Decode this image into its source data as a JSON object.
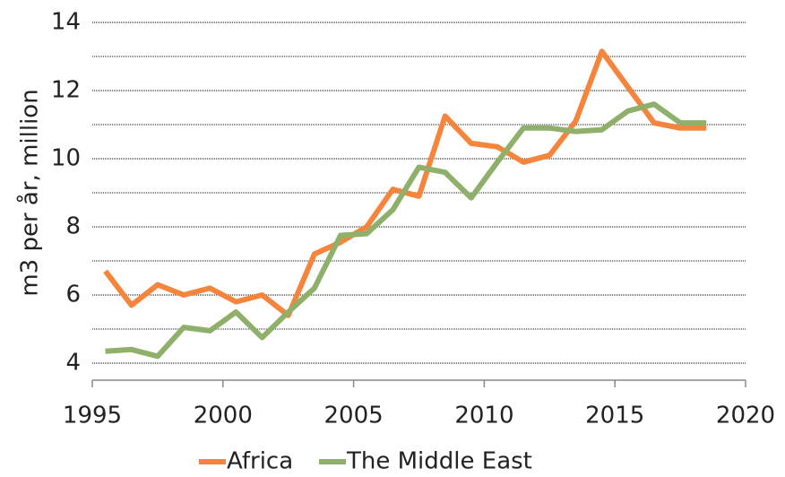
{
  "chart_data": {
    "type": "line",
    "y_label": "m3 per år, million",
    "x": [
      1995.5,
      1996.5,
      1997.5,
      1998.5,
      1999.5,
      2000.5,
      2001.5,
      2002.5,
      2003.5,
      2004.5,
      2005.5,
      2006.5,
      2007.5,
      2008.5,
      2009.5,
      2010.5,
      2011.5,
      2012.5,
      2013.5,
      2014.5,
      2015.5,
      2016.5,
      2017.5,
      2018.5
    ],
    "series": [
      {
        "name": "Africa",
        "color": "#f5843c",
        "values": [
          6.7,
          5.7,
          6.3,
          6.0,
          6.2,
          5.8,
          6.0,
          5.4,
          7.2,
          7.55,
          8.0,
          9.1,
          8.9,
          11.25,
          10.45,
          10.35,
          9.9,
          10.1,
          11.1,
          13.15,
          12.1,
          11.05,
          10.9,
          10.9
        ]
      },
      {
        "name": "The Middle East",
        "color": "#8fb06b",
        "values": [
          4.35,
          4.4,
          4.2,
          5.05,
          4.95,
          5.5,
          4.75,
          5.5,
          6.2,
          7.75,
          7.8,
          8.5,
          9.75,
          9.6,
          8.85,
          9.9,
          10.9,
          10.9,
          10.8,
          10.85,
          11.4,
          11.6,
          11.05,
          11.05
        ]
      }
    ],
    "xlim": [
      1995,
      2020
    ],
    "xticks": [
      1995,
      2000,
      2005,
      2010,
      2015,
      2020
    ],
    "ylim": [
      3.5,
      14
    ],
    "yticks": [
      4,
      6,
      8,
      10,
      12,
      14
    ],
    "minor_yticks": [
      5,
      7,
      9,
      11,
      13
    ],
    "grid": true,
    "legend": "bottom"
  }
}
